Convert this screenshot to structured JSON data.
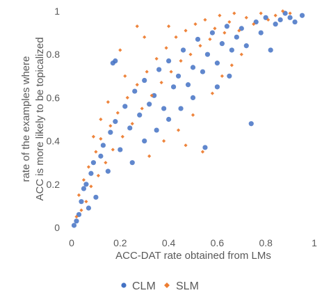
{
  "chart_data": {
    "type": "scatter",
    "title": "",
    "xlabel": "ACC-DAT rate obtained from LMs",
    "ylabel_lines": [
      "rate of  the examples where",
      "ACC is more likely to be topicalized"
    ],
    "xlim": [
      0,
      1
    ],
    "ylim": [
      0,
      1
    ],
    "x_ticks": [
      "0",
      "0.2",
      "0.4",
      "0.6",
      "0.8",
      "1"
    ],
    "y_ticks": [
      "0",
      "0.2",
      "0.4",
      "0.6",
      "0.8",
      "1"
    ],
    "grid": false,
    "legend_position": "bottom",
    "series": [
      {
        "name": "CLM",
        "marker": "circle",
        "color": "#4472C4",
        "points": [
          [
            0.01,
            0.01
          ],
          [
            0.02,
            0.03
          ],
          [
            0.03,
            0.06
          ],
          [
            0.04,
            0.12
          ],
          [
            0.05,
            0.18
          ],
          [
            0.06,
            0.2
          ],
          [
            0.07,
            0.09
          ],
          [
            0.08,
            0.25
          ],
          [
            0.09,
            0.3
          ],
          [
            0.1,
            0.14
          ],
          [
            0.12,
            0.33
          ],
          [
            0.13,
            0.38
          ],
          [
            0.15,
            0.26
          ],
          [
            0.16,
            0.44
          ],
          [
            0.18,
            0.49
          ],
          [
            0.2,
            0.36
          ],
          [
            0.22,
            0.56
          ],
          [
            0.24,
            0.46
          ],
          [
            0.26,
            0.63
          ],
          [
            0.28,
            0.52
          ],
          [
            0.3,
            0.68
          ],
          [
            0.32,
            0.57
          ],
          [
            0.34,
            0.61
          ],
          [
            0.36,
            0.73
          ],
          [
            0.38,
            0.55
          ],
          [
            0.4,
            0.77
          ],
          [
            0.42,
            0.65
          ],
          [
            0.44,
            0.7
          ],
          [
            0.46,
            0.82
          ],
          [
            0.48,
            0.66
          ],
          [
            0.5,
            0.74
          ],
          [
            0.52,
            0.87
          ],
          [
            0.54,
            0.72
          ],
          [
            0.56,
            0.8
          ],
          [
            0.58,
            0.9
          ],
          [
            0.6,
            0.76
          ],
          [
            0.62,
            0.85
          ],
          [
            0.64,
            0.93
          ],
          [
            0.66,
            0.82
          ],
          [
            0.68,
            0.88
          ],
          [
            0.7,
            0.92
          ],
          [
            0.72,
            0.84
          ],
          [
            0.74,
            0.48
          ],
          [
            0.76,
            0.95
          ],
          [
            0.78,
            0.9
          ],
          [
            0.8,
            0.97
          ],
          [
            0.82,
            0.82
          ],
          [
            0.84,
            0.94
          ],
          [
            0.86,
            0.96
          ],
          [
            0.88,
            0.99
          ],
          [
            0.9,
            0.97
          ],
          [
            0.92,
            0.95
          ],
          [
            0.95,
            0.98
          ],
          [
            0.18,
            0.77
          ],
          [
            0.17,
            0.76
          ],
          [
            0.25,
            0.3
          ],
          [
            0.3,
            0.4
          ],
          [
            0.35,
            0.45
          ],
          [
            0.4,
            0.5
          ],
          [
            0.45,
            0.55
          ],
          [
            0.5,
            0.6
          ],
          [
            0.55,
            0.37
          ],
          [
            0.6,
            0.65
          ],
          [
            0.65,
            0.7
          ]
        ]
      },
      {
        "name": "SLM",
        "marker": "diamond",
        "color": "#ED7D31",
        "points": [
          [
            0.02,
            0.05
          ],
          [
            0.03,
            0.15
          ],
          [
            0.04,
            0.08
          ],
          [
            0.05,
            0.22
          ],
          [
            0.06,
            0.12
          ],
          [
            0.07,
            0.28
          ],
          [
            0.08,
            0.19
          ],
          [
            0.1,
            0.35
          ],
          [
            0.11,
            0.24
          ],
          [
            0.12,
            0.41
          ],
          [
            0.14,
            0.3
          ],
          [
            0.16,
            0.47
          ],
          [
            0.17,
            0.36
          ],
          [
            0.19,
            0.53
          ],
          [
            0.21,
            0.42
          ],
          [
            0.23,
            0.6
          ],
          [
            0.25,
            0.48
          ],
          [
            0.27,
            0.66
          ],
          [
            0.29,
            0.55
          ],
          [
            0.31,
            0.72
          ],
          [
            0.33,
            0.61
          ],
          [
            0.35,
            0.78
          ],
          [
            0.37,
            0.67
          ],
          [
            0.39,
            0.83
          ],
          [
            0.41,
            0.72
          ],
          [
            0.43,
            0.88
          ],
          [
            0.45,
            0.77
          ],
          [
            0.47,
            0.91
          ],
          [
            0.49,
            0.8
          ],
          [
            0.51,
            0.94
          ],
          [
            0.53,
            0.84
          ],
          [
            0.55,
            0.96
          ],
          [
            0.57,
            0.87
          ],
          [
            0.59,
            0.92
          ],
          [
            0.61,
            0.98
          ],
          [
            0.63,
            0.9
          ],
          [
            0.65,
            0.95
          ],
          [
            0.67,
            0.99
          ],
          [
            0.69,
            0.91
          ],
          [
            0.72,
            0.97
          ],
          [
            0.75,
            0.94
          ],
          [
            0.78,
            0.99
          ],
          [
            0.81,
            0.96
          ],
          [
            0.84,
            0.98
          ],
          [
            0.87,
            1.0
          ],
          [
            0.9,
            0.99
          ],
          [
            0.2,
            0.82
          ],
          [
            0.27,
            0.93
          ],
          [
            0.3,
            0.88
          ],
          [
            0.4,
            0.93
          ],
          [
            0.32,
            0.33
          ],
          [
            0.38,
            0.4
          ],
          [
            0.44,
            0.45
          ],
          [
            0.5,
            0.52
          ],
          [
            0.54,
            0.35
          ],
          [
            0.47,
            0.38
          ],
          [
            0.58,
            0.62
          ],
          [
            0.62,
            0.7
          ],
          [
            0.66,
            0.75
          ],
          [
            0.7,
            0.8
          ],
          [
            0.15,
            0.58
          ],
          [
            0.22,
            0.7
          ],
          [
            0.12,
            0.5
          ],
          [
            0.09,
            0.42
          ]
        ]
      }
    ]
  }
}
